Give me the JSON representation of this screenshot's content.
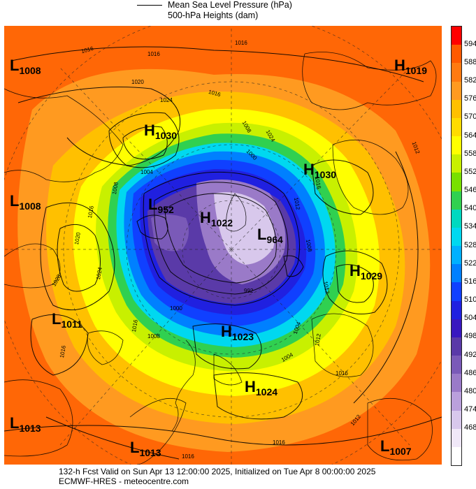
{
  "header": {
    "line1_label": "Mean Sea Level Pressure (hPa)",
    "line2_label": "500-hPa Heights (dam)"
  },
  "colorbar": {
    "ticks": [
      "594",
      "588",
      "582",
      "576",
      "570",
      "564",
      "558",
      "552",
      "546",
      "540",
      "534",
      "528",
      "522",
      "516",
      "510",
      "504",
      "498",
      "492",
      "486",
      "480",
      "474",
      "468"
    ],
    "colors": [
      "#ff0000",
      "#ff5a00",
      "#ff7a10",
      "#ff9a20",
      "#ffc000",
      "#ffdc00",
      "#ffff00",
      "#c8f000",
      "#78e000",
      "#30d050",
      "#00d8c0",
      "#00d8f0",
      "#00b0ff",
      "#0080ff",
      "#1040ff",
      "#2020e0",
      "#3818c0",
      "#5a3aa8",
      "#7a5ab8",
      "#9a7ac8",
      "#baa0dc",
      "#d8c8ec",
      "#f0e8f8",
      "#ffffff"
    ]
  },
  "systems": [
    {
      "type": "L",
      "value": "1008"
    },
    {
      "type": "H",
      "value": "1019"
    },
    {
      "type": "H",
      "value": "1030"
    },
    {
      "type": "H",
      "value": "1030"
    },
    {
      "type": "L",
      "value": "1008"
    },
    {
      "type": "L",
      "value": "952"
    },
    {
      "type": "H",
      "value": "1022"
    },
    {
      "type": "L",
      "value": "964"
    },
    {
      "type": "H",
      "value": "1029"
    },
    {
      "type": "L",
      "value": "1011"
    },
    {
      "type": "H",
      "value": "1023"
    },
    {
      "type": "H",
      "value": "1024"
    },
    {
      "type": "L",
      "value": "1013"
    },
    {
      "type": "L",
      "value": "1013"
    },
    {
      "type": "L",
      "value": "1007"
    }
  ],
  "isobar_labels": [
    "1016",
    "1016",
    "1016",
    "1012",
    "1020",
    "1024",
    "1016",
    "1008",
    "1024",
    "1004",
    "1000",
    "1008",
    "1016",
    "1012",
    "1020",
    "1016",
    "1008",
    "1028",
    "1024",
    "1016",
    "1012",
    "1008",
    "1004",
    "992",
    "1000",
    "1012",
    "1016",
    "1016",
    "1016",
    "1012",
    "1004",
    "1016"
  ],
  "footer": {
    "line1": "132-h Fcst Valid on Sun Apr 13 12:00:00 2025, Initialized on Tue Apr  8 00:00:00 2025",
    "line2": "ECMWF-HRES  - meteocentre.com"
  }
}
